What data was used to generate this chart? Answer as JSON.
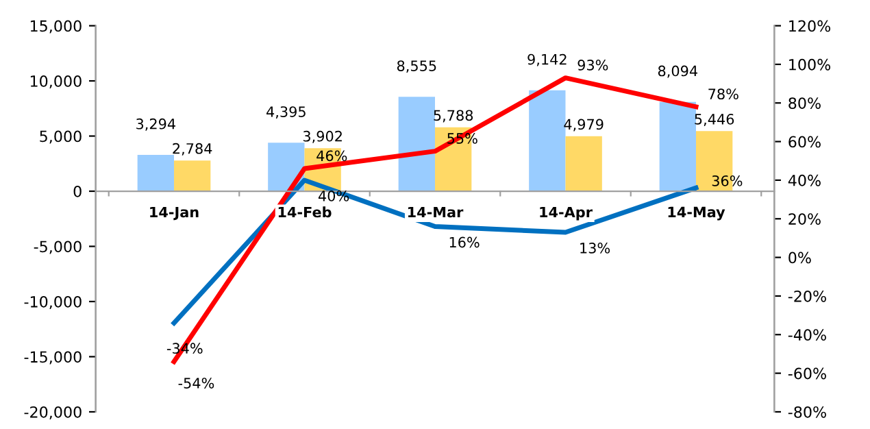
{
  "chart_data": {
    "type": "bar",
    "categories": [
      "14-Jan",
      "14-Feb",
      "14-Mar",
      "14-Apr",
      "14-May"
    ],
    "series": [
      {
        "color": "#99ccff",
        "values": [
          3294,
          4395,
          8555,
          9142,
          8094
        ],
        "value_labels": [
          "3,294",
          "4,395",
          "8,555",
          "9,142",
          "8,094"
        ]
      },
      {
        "color": "#ffd966",
        "values": [
          2784,
          3902,
          5788,
          4979,
          5446
        ],
        "value_labels": [
          "2,784",
          "3,902",
          "5,788",
          "4,979",
          "5,446"
        ]
      },
      {
        "type": "line",
        "axis": "y2",
        "color": "#0070c0",
        "values": [
          -34,
          40,
          16,
          13,
          36
        ],
        "value_labels": [
          "-34%",
          "40%",
          "16%",
          "13%",
          "36%"
        ]
      },
      {
        "type": "line",
        "axis": "y2",
        "color": "#ff0000",
        "values": [
          -54,
          46,
          55,
          93,
          78
        ],
        "value_labels": [
          "-54%",
          "46%",
          "55%",
          "93%",
          "78%"
        ]
      }
    ],
    "ylim": [
      -20000,
      15000
    ],
    "yticks": [
      {
        "value": -20000,
        "label": "-20,000"
      },
      {
        "value": -15000,
        "label": "-15,000"
      },
      {
        "value": -10000,
        "label": "-10,000"
      },
      {
        "value": -5000,
        "label": "-5,000"
      },
      0,
      {
        "value": 5000,
        "label": "5,000"
      },
      {
        "value": 10000,
        "label": "10,000"
      },
      {
        "value": 15000,
        "label": "15,000"
      }
    ],
    "y2lim": [
      -80,
      120
    ],
    "y2ticks": [
      {
        "value": -80,
        "label": "-80%"
      },
      {
        "value": -60,
        "label": "-60%"
      },
      {
        "value": -40,
        "label": "-40%"
      },
      {
        "value": -20,
        "label": "-20%"
      },
      {
        "value": 0,
        "label": "0%"
      },
      {
        "value": 20,
        "label": "20%"
      },
      {
        "value": 40,
        "label": "40%"
      },
      {
        "value": 60,
        "label": "60%"
      },
      {
        "value": 80,
        "label": "80%"
      },
      {
        "value": 100,
        "label": "100%"
      },
      {
        "value": 120,
        "label": "120%"
      }
    ],
    "grid": false,
    "marker": "none",
    "line_style": "solid"
  }
}
